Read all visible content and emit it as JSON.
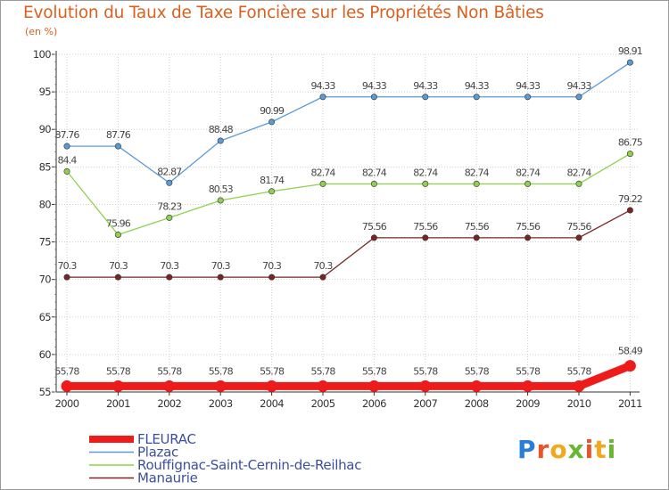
{
  "title": "Evolution du Taux de Taxe Foncière sur les Propriétés Non Bâties",
  "unit": "(en %)",
  "brand": {
    "letters": [
      "P",
      "r",
      "o",
      "x",
      "i",
      "t",
      "i"
    ]
  },
  "colors": {
    "FLEURAC": "#ee1b1b",
    "Plazac": "#5b9bd5",
    "Rouffignac": "#8ed14c",
    "Manaurie": "#7a2424",
    "axis": "#333333",
    "grid": "#d0d0d0"
  },
  "chart_data": {
    "type": "line",
    "title": "Evolution du Taux de Taxe Foncière sur les Propriétés Non Bâties",
    "ylabel": "(en %)",
    "xlabel": "",
    "ylim": [
      55,
      100
    ],
    "yticks": [
      55,
      60,
      65,
      70,
      75,
      80,
      85,
      90,
      95,
      100
    ],
    "categories": [
      "2000",
      "2001",
      "2002",
      "2003",
      "2004",
      "2005",
      "2006",
      "2007",
      "2008",
      "2009",
      "2010",
      "2011"
    ],
    "series": [
      {
        "name": "Plazac",
        "color": "#5b9bd5",
        "values": [
          87.76,
          87.76,
          82.87,
          88.48,
          90.99,
          94.33,
          94.33,
          94.33,
          94.33,
          94.33,
          94.33,
          98.91
        ],
        "labels": [
          "87.76",
          "87.76",
          "82.87",
          "88.48",
          "90.99",
          "94.33",
          "94.33",
          "94.33",
          "94.33",
          "94.33",
          "94.33",
          "98.91"
        ]
      },
      {
        "name": "Rouffignac-Saint-Cernin-de-Reilhac",
        "color": "#8ed14c",
        "values": [
          84.4,
          75.96,
          78.23,
          80.53,
          81.74,
          82.74,
          82.74,
          82.74,
          82.74,
          82.74,
          82.74,
          86.75
        ],
        "labels": [
          "84.4",
          "75.96",
          "78.23",
          "80.53",
          "81.74",
          "82.74",
          "82.74",
          "82.74",
          "82.74",
          "82.74",
          "82.74",
          "86.75"
        ]
      },
      {
        "name": "Manaurie",
        "color": "#7a2424",
        "values": [
          70.3,
          70.3,
          70.3,
          70.3,
          70.3,
          70.3,
          75.56,
          75.56,
          75.56,
          75.56,
          75.56,
          79.22
        ],
        "labels": [
          "70.3",
          "70.3",
          "70.3",
          "70.3",
          "70.3",
          "70.3",
          "75.56",
          "75.56",
          "75.56",
          "75.56",
          "75.56",
          "79.22"
        ]
      },
      {
        "name": "FLEURAC",
        "color": "#ee1b1b",
        "highlight": true,
        "values": [
          55.78,
          55.78,
          55.78,
          55.78,
          55.78,
          55.78,
          55.78,
          55.78,
          55.78,
          55.78,
          55.78,
          58.49
        ],
        "labels": [
          "55.78",
          "55.78",
          "55.78",
          "55.78",
          "55.78",
          "55.78",
          "55.78",
          "55.78",
          "55.78",
          "55.78",
          "55.78",
          "58.49"
        ]
      }
    ],
    "legend": [
      "FLEURAC",
      "Plazac",
      "Rouffignac-Saint-Cernin-de-Reilhac",
      "Manaurie"
    ]
  }
}
